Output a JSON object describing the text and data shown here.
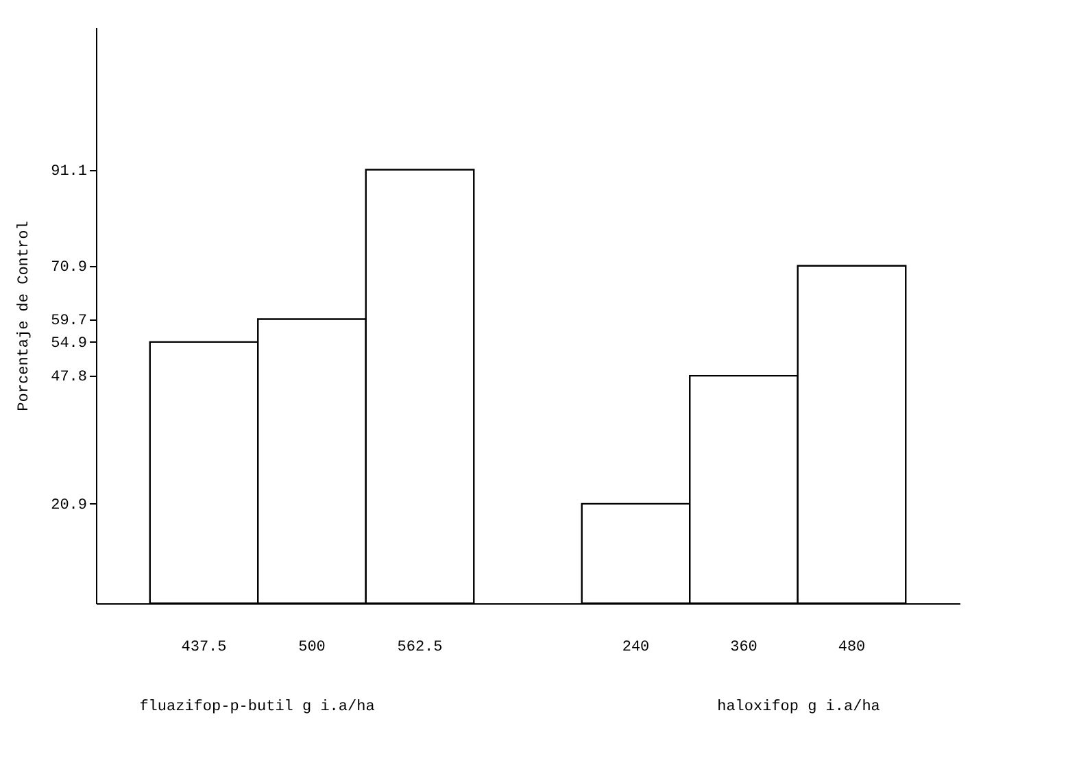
{
  "chart_data": {
    "type": "bar",
    "ylabel": "Porcentaje de Control",
    "categories": [
      "437.5",
      "500",
      "562.5",
      null,
      "240",
      "360",
      "480"
    ],
    "values": [
      54.9,
      59.7,
      91.1,
      null,
      20.9,
      47.8,
      70.9
    ],
    "color": "#ffffff",
    "ylim": [
      0,
      121
    ],
    "yticks": [
      20.9,
      47.8,
      54.9,
      59.7,
      70.9,
      91.1
    ],
    "grid": false,
    "annotations": [
      "fluazifop-p-butil g i.a/ha",
      "haloxifop  g i.a/ha"
    ]
  }
}
